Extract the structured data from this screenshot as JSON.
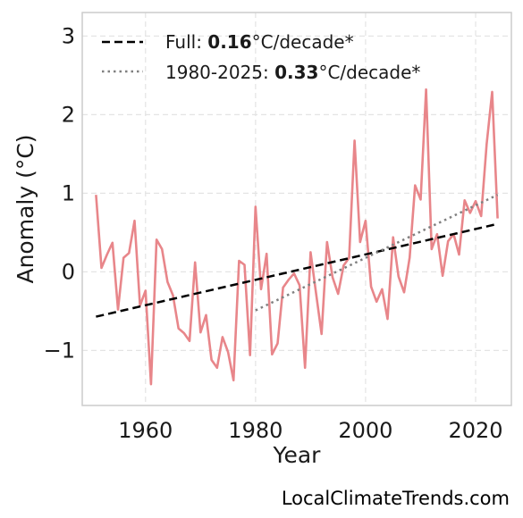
{
  "chart_data": {
    "type": "line",
    "xlabel": "Year",
    "ylabel": "Anomaly (°C)",
    "xlim": [
      1948.5,
      2026.5
    ],
    "ylim": [
      -1.7,
      3.3
    ],
    "x_ticks": [
      1960,
      1980,
      2000,
      2020
    ],
    "y_ticks": [
      -1,
      0,
      1,
      2,
      3
    ],
    "y_tick_labels": [
      "−1",
      "0",
      "1",
      "2",
      "3"
    ],
    "grid": true,
    "legend_position": "top-left",
    "colors": {
      "series": "#e8868a",
      "full_trend": "#000000",
      "recent_trend": "#808080",
      "grid": "#e4e4e4",
      "frame": "#cccccc"
    },
    "series": [
      {
        "x": [
          1951,
          1952,
          1953,
          1954,
          1955,
          1956,
          1957,
          1958,
          1959,
          1960,
          1961,
          1962,
          1963,
          1964,
          1965,
          1966,
          1967,
          1968,
          1969,
          1970,
          1971,
          1972,
          1973,
          1974,
          1975,
          1976,
          1977,
          1978,
          1979,
          1980,
          1981,
          1982,
          1983,
          1984,
          1985,
          1986,
          1987,
          1988,
          1989,
          1990,
          1991,
          1992,
          1993,
          1994,
          1995,
          1996,
          1997,
          1998,
          1999,
          2000,
          2001,
          2002,
          2003,
          2004,
          2005,
          2006,
          2007,
          2008,
          2009,
          2010,
          2011,
          2012,
          2013,
          2014,
          2015,
          2016,
          2017,
          2018,
          2019,
          2020,
          2021,
          2022,
          2023,
          2024
        ],
        "y": [
          0.98,
          0.05,
          0.22,
          0.37,
          -0.48,
          0.18,
          0.24,
          0.65,
          -0.43,
          -0.24,
          -1.43,
          0.41,
          0.29,
          -0.13,
          -0.3,
          -0.72,
          -0.78,
          -0.88,
          0.12,
          -0.77,
          -0.55,
          -1.12,
          -1.22,
          -0.83,
          -1.02,
          -1.38,
          0.14,
          0.09,
          -1.06,
          0.83,
          -0.22,
          0.23,
          -1.05,
          -0.91,
          -0.2,
          -0.1,
          -0.02,
          -0.17,
          -1.22,
          0.25,
          -0.27,
          -0.79,
          0.38,
          -0.07,
          -0.28,
          0.08,
          0.18,
          1.67,
          0.38,
          0.65,
          -0.19,
          -0.38,
          -0.22,
          -0.6,
          0.44,
          -0.06,
          -0.26,
          0.18,
          1.1,
          0.92,
          2.32,
          0.29,
          0.48,
          -0.05,
          0.39,
          0.48,
          0.22,
          0.91,
          0.75,
          0.9,
          0.71,
          1.62,
          2.29,
          0.68
        ]
      }
    ],
    "trends": [
      {
        "label": "Full: ",
        "value": "0.16",
        "unit": "°C/decade*",
        "style": "dashed",
        "x": [
          1951,
          2024
        ],
        "y": [
          -0.57,
          0.61
        ]
      },
      {
        "label": "1980-2025: ",
        "value": "0.33",
        "unit": "°C/decade*",
        "style": "dotted",
        "x": [
          1980,
          2024
        ],
        "y": [
          -0.49,
          0.98
        ]
      }
    ]
  },
  "watermark": "LocalClimateTrends.com"
}
